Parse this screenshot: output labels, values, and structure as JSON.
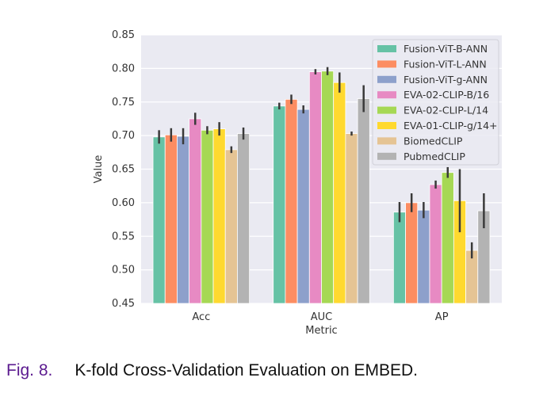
{
  "chart_data": {
    "type": "bar",
    "xlabel": "Metric",
    "ylabel": "Value",
    "ylim": [
      0.45,
      0.85
    ],
    "yticks": [
      "0.45",
      "0.50",
      "0.55",
      "0.60",
      "0.65",
      "0.70",
      "0.75",
      "0.80",
      "0.85"
    ],
    "categories": [
      "Acc",
      "AUC",
      "AP"
    ],
    "legend_position": "top-right",
    "grid": true,
    "series": [
      {
        "name": "Fusion-ViT-B-ANN",
        "color": "#66c2a5",
        "values": [
          0.698,
          0.744,
          0.586
        ],
        "err": [
          0.01,
          0.005,
          0.015
        ]
      },
      {
        "name": "Fusion-ViT-L-ANN",
        "color": "#fc8d62",
        "values": [
          0.701,
          0.754,
          0.6
        ],
        "err": [
          0.01,
          0.007,
          0.014
        ]
      },
      {
        "name": "Fusion-ViT-g-ANN",
        "color": "#8da0cb",
        "values": [
          0.699,
          0.739,
          0.589
        ],
        "err": [
          0.012,
          0.006,
          0.012
        ]
      },
      {
        "name": "EVA-02-CLIP-B/16",
        "color": "#e78ac3",
        "values": [
          0.725,
          0.795,
          0.627
        ],
        "err": [
          0.009,
          0.004,
          0.006
        ]
      },
      {
        "name": "EVA-02-CLIP-L/14",
        "color": "#a6d854",
        "values": [
          0.708,
          0.796,
          0.645
        ],
        "err": [
          0.006,
          0.006,
          0.008
        ]
      },
      {
        "name": "EVA-01-CLIP-g/14+",
        "color": "#ffd92f",
        "values": [
          0.71,
          0.779,
          0.603
        ],
        "err": [
          0.01,
          0.015,
          0.047
        ]
      },
      {
        "name": "BiomedCLIP",
        "color": "#e5c494",
        "values": [
          0.679,
          0.703,
          0.529
        ],
        "err": [
          0.005,
          0.003,
          0.012
        ]
      },
      {
        "name": "PubmedCLIP",
        "color": "#b3b3b3",
        "values": [
          0.703,
          0.755,
          0.588
        ],
        "err": [
          0.009,
          0.02,
          0.026
        ]
      }
    ]
  },
  "caption": {
    "label": "Fig. 8.",
    "text": "K-fold Cross-Validation Evaluation on EMBED."
  }
}
